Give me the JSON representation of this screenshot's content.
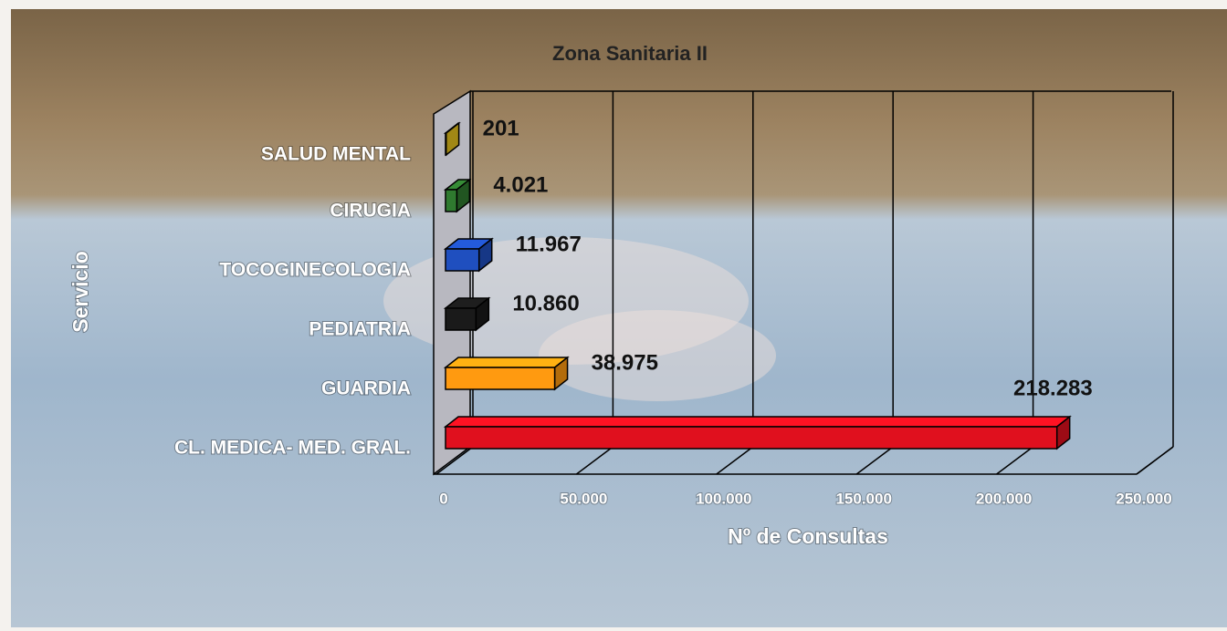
{
  "chart_data": {
    "type": "bar3d_horizontal",
    "title": "Zona Sanitaria II",
    "xlabel": "Nº de Consultas",
    "ylabel": "Servicio",
    "categories": [
      "SALUD MENTAL",
      "CIRUGIA",
      "TOCOGINECOLOGIA",
      "PEDIATRIA",
      "GUARDIA",
      "CL. MEDICA- MED. GRAL."
    ],
    "values": [
      201,
      4021,
      11967,
      10860,
      38975,
      218283
    ],
    "value_labels": [
      "201",
      "4.021",
      "11.967",
      "10.860",
      "38.975",
      "218.283"
    ],
    "colors": [
      "#e6c21e",
      "#2f7a2f",
      "#1f4fbf",
      "#1a1a1a",
      "#ff9a10",
      "#e0101e"
    ],
    "xlim": [
      0,
      250000
    ],
    "xticks": [
      0,
      {
        "value": 50000,
        "label": "50.000"
      },
      {
        "value": 100000,
        "label": "100.000"
      },
      {
        "value": 150000,
        "label": "150.000"
      },
      {
        "value": 200000,
        "label": "200.000"
      },
      {
        "value": 250000,
        "label": "250.000"
      }
    ],
    "grid": true
  }
}
